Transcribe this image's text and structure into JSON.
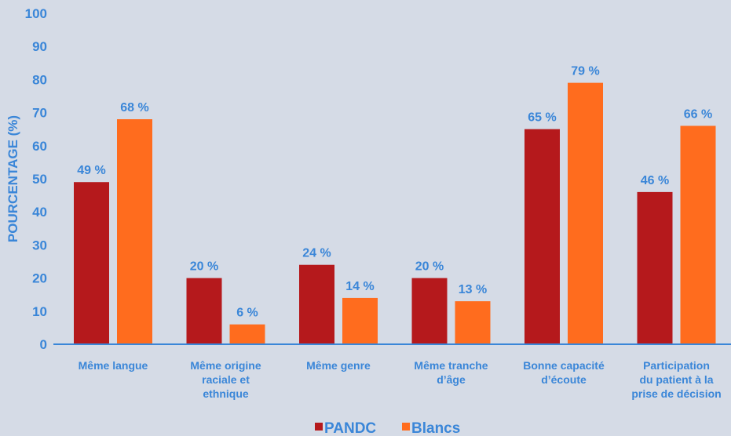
{
  "chart_data": {
    "type": "bar",
    "categories": [
      [
        "Même langue"
      ],
      [
        "Même origine",
        "raciale et",
        "ethnique"
      ],
      [
        "Même genre"
      ],
      [
        "Même tranche",
        "d’âge"
      ],
      [
        "Bonne capacité",
        "d’écoute"
      ],
      [
        "Participation",
        "du patient à la",
        "prise de décision"
      ]
    ],
    "series": [
      {
        "name": "PANDC",
        "color": "#b5191c",
        "values": [
          49,
          20,
          24,
          20,
          65,
          46
        ],
        "labels": [
          "49 %",
          "20 %",
          "24 %",
          "20 %",
          "65 %",
          "46 %"
        ]
      },
      {
        "name": "Blancs",
        "color": "#ff6c1e",
        "values": [
          68,
          6,
          14,
          13,
          79,
          66
        ],
        "labels": [
          "68 %",
          "6 %",
          "14 %",
          "13 %",
          "79 %",
          "66 %"
        ]
      }
    ],
    "ylabel": "POURCENTAGE (%)",
    "ylim": [
      0,
      100
    ],
    "yticks": [
      0,
      10,
      20,
      30,
      40,
      50,
      60,
      70,
      80,
      90,
      100
    ],
    "grid": false,
    "legend_position": "bottom-center",
    "axis_color": "#3a86d8"
  }
}
